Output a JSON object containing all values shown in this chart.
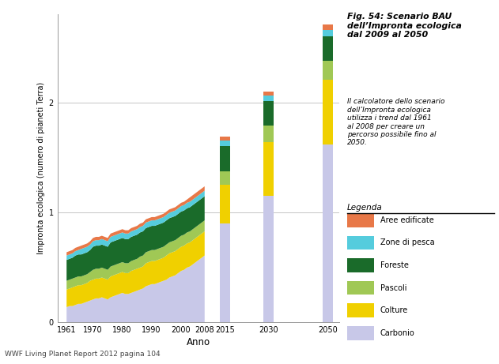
{
  "title_bold": "Fig. 54: Scenario BAU\ndell’Impronta ecologica\ndal 2009 al 2050",
  "title_italic": "Il calcolatore dello scenario\ndell’Impronta ecologica\nutilizza i trend dal 1961\nal 2008 per creare un\npercorso possibile fino al\n2050.",
  "legend_title": "Legenda",
  "xlabel": "Anno",
  "ylabel": "Impronta ecologica (numero di pianeti Terra)",
  "footer": "WWF Living Planet Report 2012 pagina 104",
  "ylim": [
    0,
    2.8
  ],
  "yticks": [
    0,
    1,
    2
  ],
  "colors": {
    "Carbonio": "#c8c8e8",
    "Colture": "#f0d000",
    "Pascoli": "#a0c855",
    "Foreste": "#1a6b2a",
    "Zone di pesca": "#55ccdd",
    "Aree edificate": "#e87848"
  },
  "legend_order": [
    "Aree edificate",
    "Zone di pesca",
    "Foreste",
    "Pascoli",
    "Colture",
    "Carbonio"
  ],
  "area_years": [
    1961,
    1962,
    1963,
    1964,
    1965,
    1966,
    1967,
    1968,
    1969,
    1970,
    1971,
    1972,
    1973,
    1974,
    1975,
    1976,
    1977,
    1978,
    1979,
    1980,
    1981,
    1982,
    1983,
    1984,
    1985,
    1986,
    1987,
    1988,
    1989,
    1990,
    1991,
    1992,
    1993,
    1994,
    1995,
    1996,
    1997,
    1998,
    1999,
    2000,
    2001,
    2002,
    2003,
    2004,
    2005,
    2006,
    2007,
    2008
  ],
  "area_data": {
    "Carbonio": [
      0.14,
      0.15,
      0.15,
      0.16,
      0.17,
      0.17,
      0.18,
      0.19,
      0.2,
      0.21,
      0.22,
      0.22,
      0.23,
      0.22,
      0.21,
      0.23,
      0.24,
      0.25,
      0.26,
      0.27,
      0.26,
      0.26,
      0.27,
      0.28,
      0.29,
      0.3,
      0.31,
      0.33,
      0.34,
      0.35,
      0.35,
      0.36,
      0.37,
      0.38,
      0.39,
      0.41,
      0.42,
      0.43,
      0.45,
      0.47,
      0.48,
      0.5,
      0.51,
      0.53,
      0.55,
      0.57,
      0.59,
      0.61
    ],
    "Colture": [
      0.16,
      0.16,
      0.17,
      0.17,
      0.17,
      0.17,
      0.17,
      0.17,
      0.18,
      0.18,
      0.18,
      0.18,
      0.18,
      0.18,
      0.18,
      0.19,
      0.19,
      0.19,
      0.19,
      0.19,
      0.19,
      0.19,
      0.2,
      0.2,
      0.2,
      0.2,
      0.2,
      0.21,
      0.21,
      0.21,
      0.21,
      0.21,
      0.21,
      0.21,
      0.22,
      0.22,
      0.22,
      0.22,
      0.22,
      0.22,
      0.22,
      0.22,
      0.22,
      0.22,
      0.22,
      0.22,
      0.22,
      0.22
    ],
    "Pascoli": [
      0.08,
      0.08,
      0.08,
      0.08,
      0.08,
      0.08,
      0.08,
      0.08,
      0.08,
      0.09,
      0.09,
      0.09,
      0.09,
      0.09,
      0.09,
      0.09,
      0.09,
      0.09,
      0.09,
      0.09,
      0.09,
      0.09,
      0.09,
      0.09,
      0.09,
      0.1,
      0.1,
      0.1,
      0.1,
      0.1,
      0.1,
      0.1,
      0.1,
      0.1,
      0.1,
      0.1,
      0.1,
      0.1,
      0.1,
      0.1,
      0.1,
      0.1,
      0.1,
      0.1,
      0.1,
      0.1,
      0.1,
      0.1
    ],
    "Foreste": [
      0.19,
      0.19,
      0.19,
      0.2,
      0.2,
      0.2,
      0.2,
      0.2,
      0.2,
      0.21,
      0.21,
      0.21,
      0.21,
      0.21,
      0.21,
      0.22,
      0.22,
      0.22,
      0.22,
      0.22,
      0.22,
      0.22,
      0.22,
      0.22,
      0.22,
      0.22,
      0.22,
      0.22,
      0.22,
      0.22,
      0.22,
      0.22,
      0.22,
      0.22,
      0.22,
      0.22,
      0.22,
      0.22,
      0.22,
      0.22,
      0.22,
      0.22,
      0.22,
      0.22,
      0.22,
      0.22,
      0.22,
      0.22
    ],
    "Zone di pesca": [
      0.04,
      0.04,
      0.04,
      0.04,
      0.04,
      0.05,
      0.05,
      0.05,
      0.05,
      0.05,
      0.05,
      0.05,
      0.05,
      0.05,
      0.05,
      0.05,
      0.05,
      0.05,
      0.05,
      0.05,
      0.05,
      0.05,
      0.05,
      0.05,
      0.05,
      0.05,
      0.05,
      0.05,
      0.05,
      0.05,
      0.05,
      0.05,
      0.05,
      0.05,
      0.05,
      0.05,
      0.05,
      0.05,
      0.05,
      0.05,
      0.05,
      0.05,
      0.05,
      0.05,
      0.05,
      0.05,
      0.05,
      0.05
    ],
    "Aree edificate": [
      0.03,
      0.03,
      0.03,
      0.03,
      0.03,
      0.03,
      0.03,
      0.03,
      0.03,
      0.03,
      0.03,
      0.03,
      0.03,
      0.03,
      0.03,
      0.03,
      0.03,
      0.03,
      0.03,
      0.03,
      0.03,
      0.03,
      0.03,
      0.03,
      0.03,
      0.03,
      0.03,
      0.03,
      0.03,
      0.03,
      0.03,
      0.03,
      0.03,
      0.03,
      0.03,
      0.03,
      0.03,
      0.03,
      0.03,
      0.03,
      0.03,
      0.03,
      0.04,
      0.04,
      0.04,
      0.04,
      0.04,
      0.04
    ]
  },
  "bar_years": [
    2015,
    2030,
    2050
  ],
  "bar_width": 3.5,
  "bar_data": {
    "2015": {
      "Carbonio": 0.9,
      "Colture": 0.35,
      "Pascoli": 0.12,
      "Foreste": 0.23,
      "Zone di pesca": 0.05,
      "Aree edificate": 0.04
    },
    "2030": {
      "Carbonio": 1.15,
      "Colture": 0.49,
      "Pascoli": 0.15,
      "Foreste": 0.22,
      "Zone di pesca": 0.05,
      "Aree edificate": 0.04
    },
    "2050": {
      "Carbonio": 1.62,
      "Colture": 0.59,
      "Pascoli": 0.17,
      "Foreste": 0.22,
      "Zone di pesca": 0.06,
      "Aree edificate": 0.05
    }
  },
  "stack_order": [
    "Carbonio",
    "Colture",
    "Pascoli",
    "Foreste",
    "Zone di pesca",
    "Aree edificate"
  ],
  "background_color": "#ffffff",
  "grid_color": "#bbbbbb",
  "xtick_labels": [
    "1961",
    "1970",
    "1980",
    "1990",
    "2000",
    "2008",
    "2015",
    "2030",
    "2050"
  ],
  "xtick_positions": [
    1961,
    1970,
    1980,
    1990,
    2000,
    2008,
    2015,
    2030,
    2050
  ]
}
